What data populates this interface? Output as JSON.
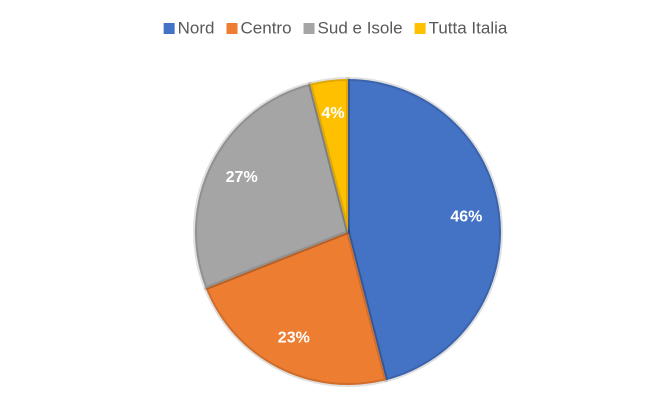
{
  "chart_data": {
    "type": "pie",
    "categories": [
      "Nord",
      "Centro",
      "Sud e Isole",
      "Tutta Italia"
    ],
    "values": [
      46,
      23,
      27,
      4
    ],
    "value_labels": [
      "46%",
      "23%",
      "27%",
      "4%"
    ],
    "colors": [
      "#4472c4",
      "#ed7d31",
      "#a5a5a5",
      "#ffc000"
    ],
    "legend": "top"
  }
}
